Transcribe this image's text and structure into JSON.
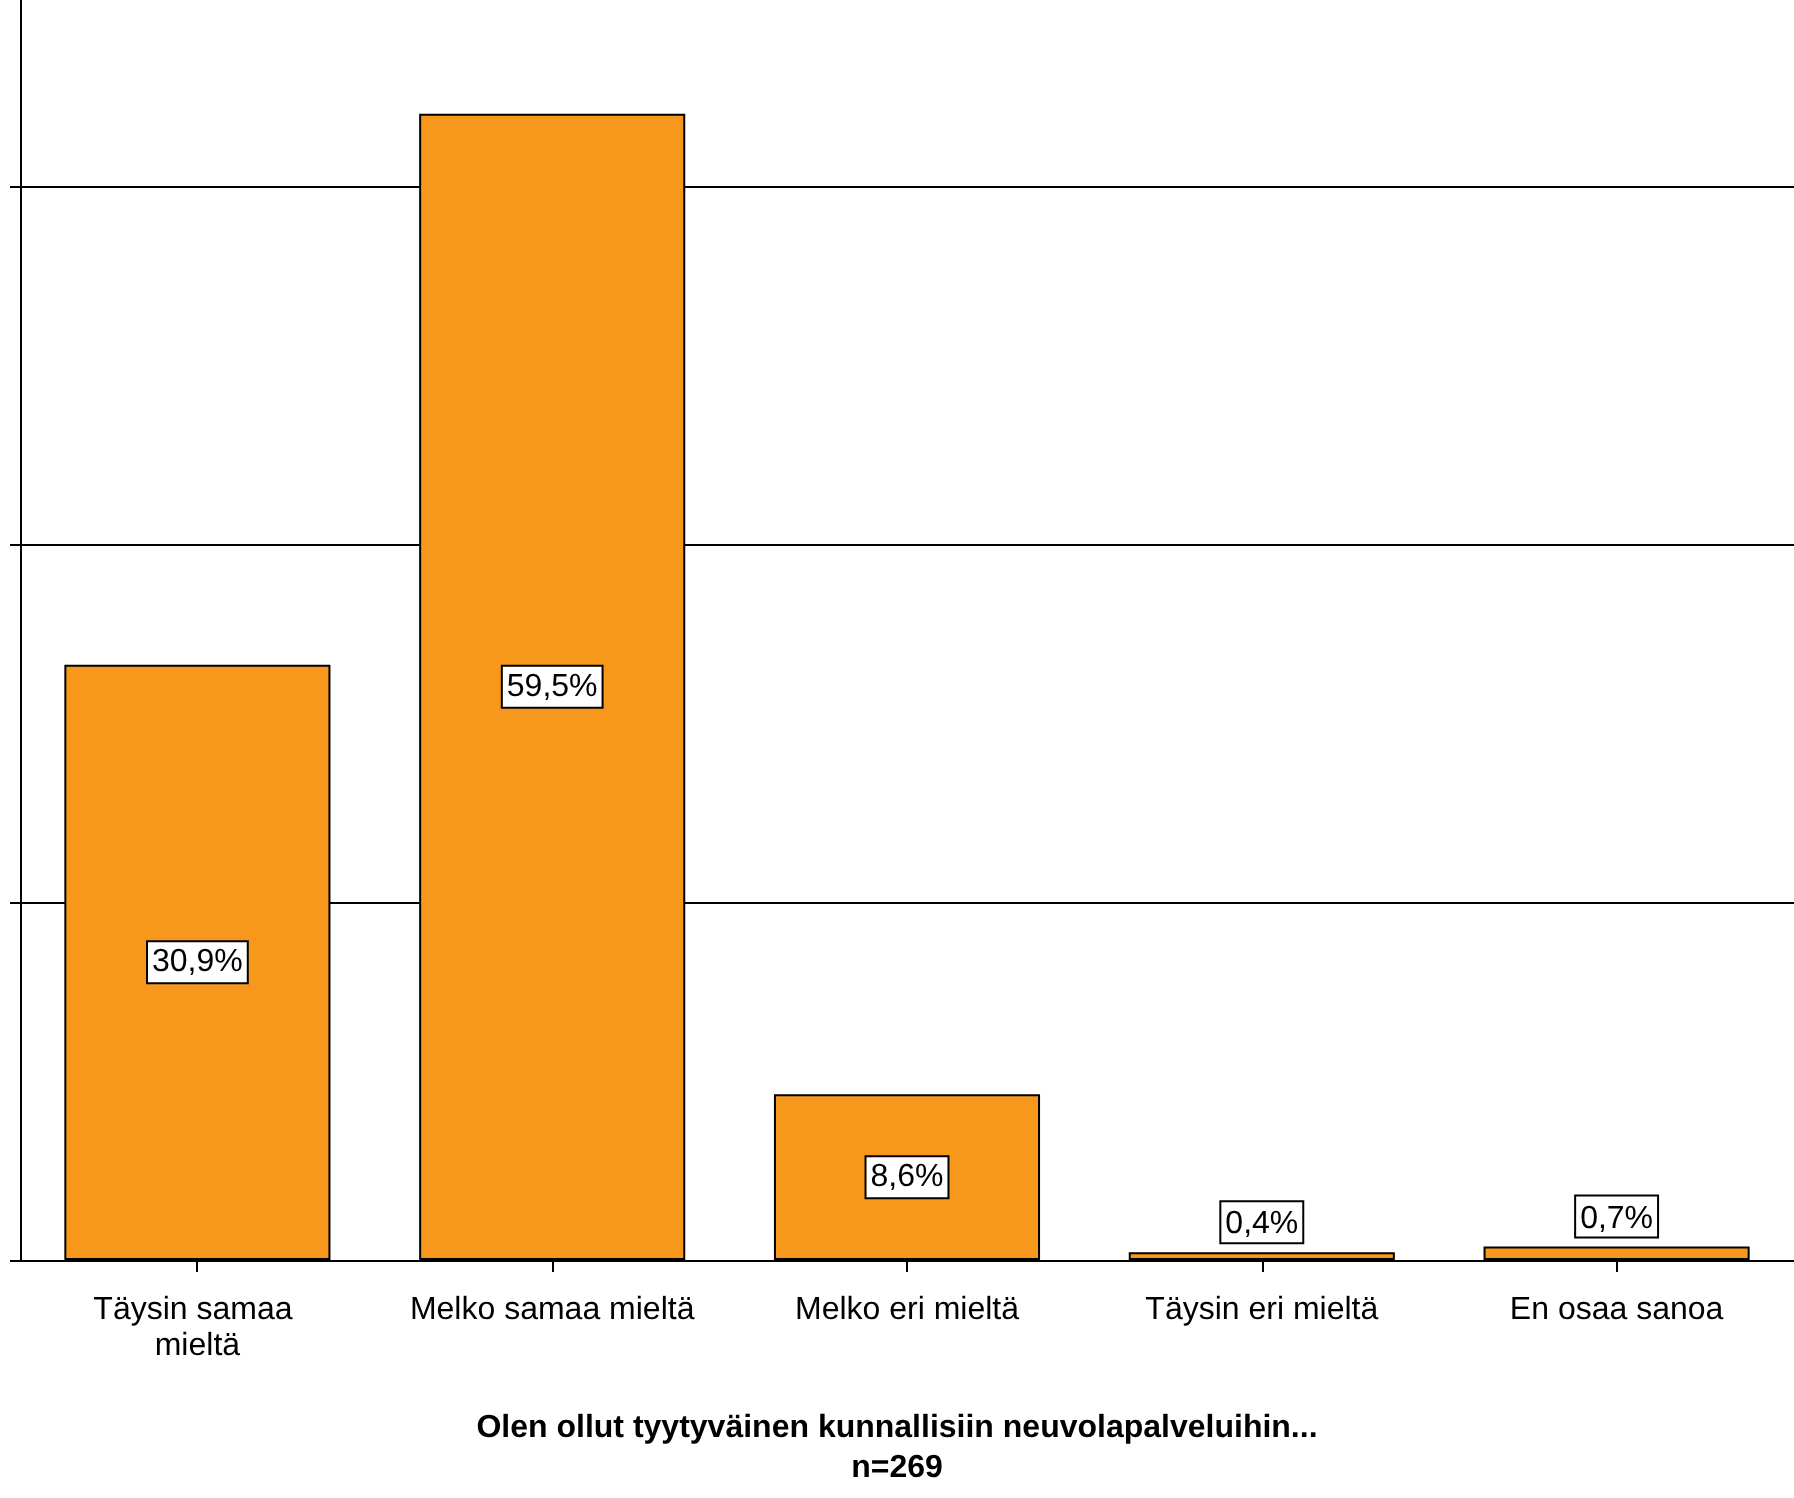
{
  "chart_data": {
    "type": "bar",
    "xlabel": "Olen ollut tyytyväinen kunnallisiin neuvolapalveluihin...",
    "annotations": [
      "n=269"
    ],
    "categories": [
      "Täysin samaa mieltä",
      "Melko samaa mieltä",
      "Melko eri mieltä",
      "Täysin eri mieltä",
      "En osaa sanoa"
    ],
    "values": [
      30.9,
      59.5,
      8.6,
      0.4,
      0.7
    ],
    "value_labels": [
      "30,9%",
      "59,5%",
      "8,6%",
      "0,4%",
      "0,7%"
    ],
    "color": "#f7981d",
    "ylim": [
      0,
      65.4
    ],
    "yticks": [
      {
        "value": 0,
        "label": null
      },
      {
        "value": 18.59,
        "label": null
      },
      {
        "value": 37.17,
        "label": null
      },
      {
        "value": 55.76,
        "label": null
      }
    ],
    "grid": "y",
    "tick_labels": "x"
  }
}
